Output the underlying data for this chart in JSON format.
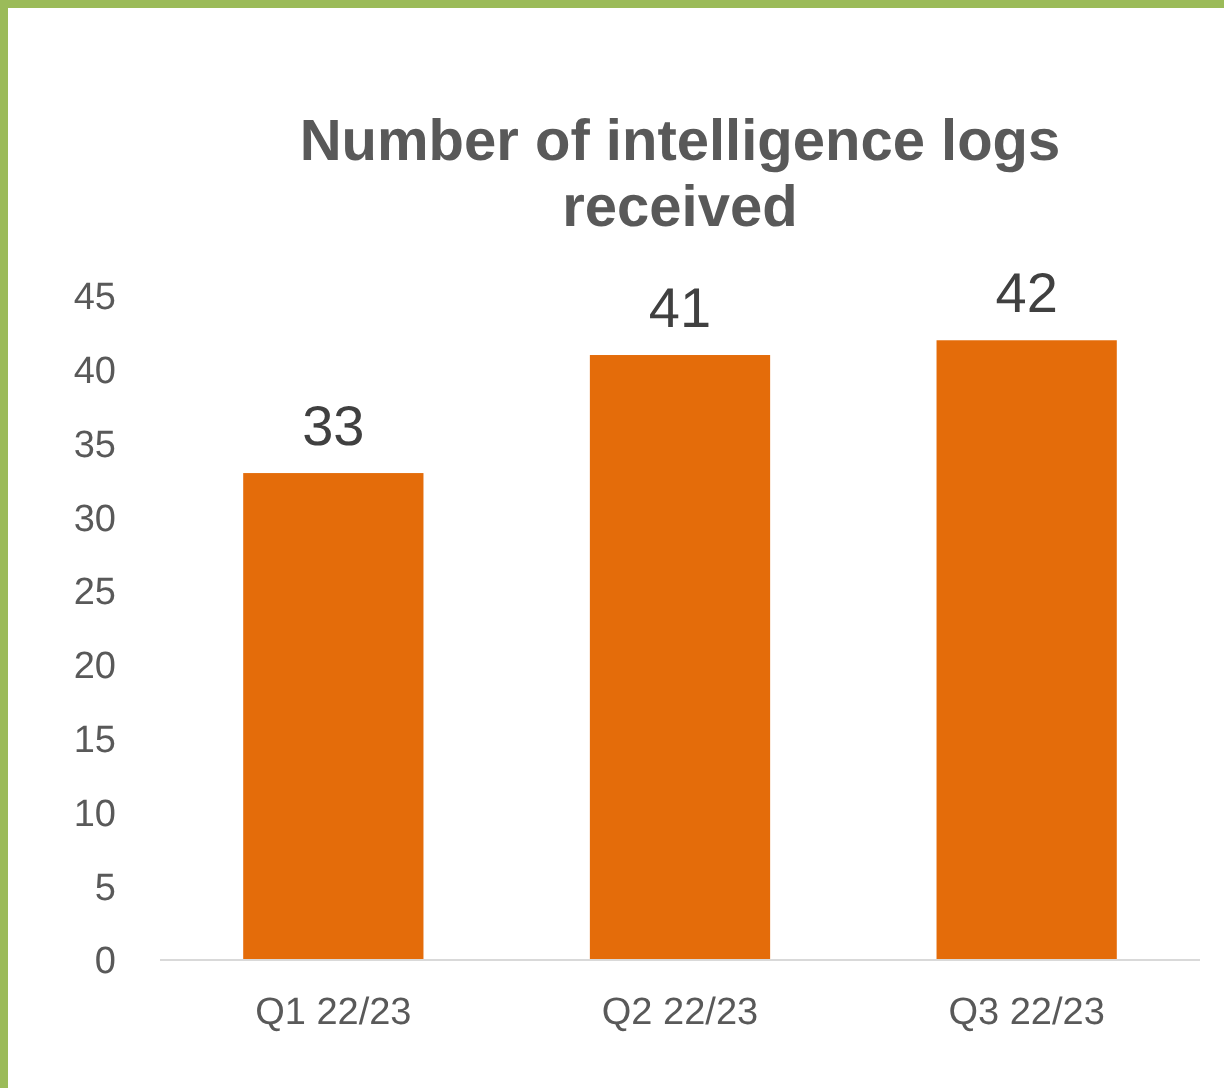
{
  "chart_data": {
    "type": "bar",
    "title": "Number of intelligence logs received",
    "categories": [
      "Q1 22/23",
      "Q2 22/23",
      "Q3 22/23"
    ],
    "values": [
      33,
      41,
      42
    ],
    "color": "#e46c0a",
    "ylim": [
      0,
      45
    ],
    "yticks": [
      0,
      5,
      10,
      15,
      20,
      25,
      30,
      35,
      40,
      45
    ],
    "grid": false,
    "data_labels": true
  }
}
